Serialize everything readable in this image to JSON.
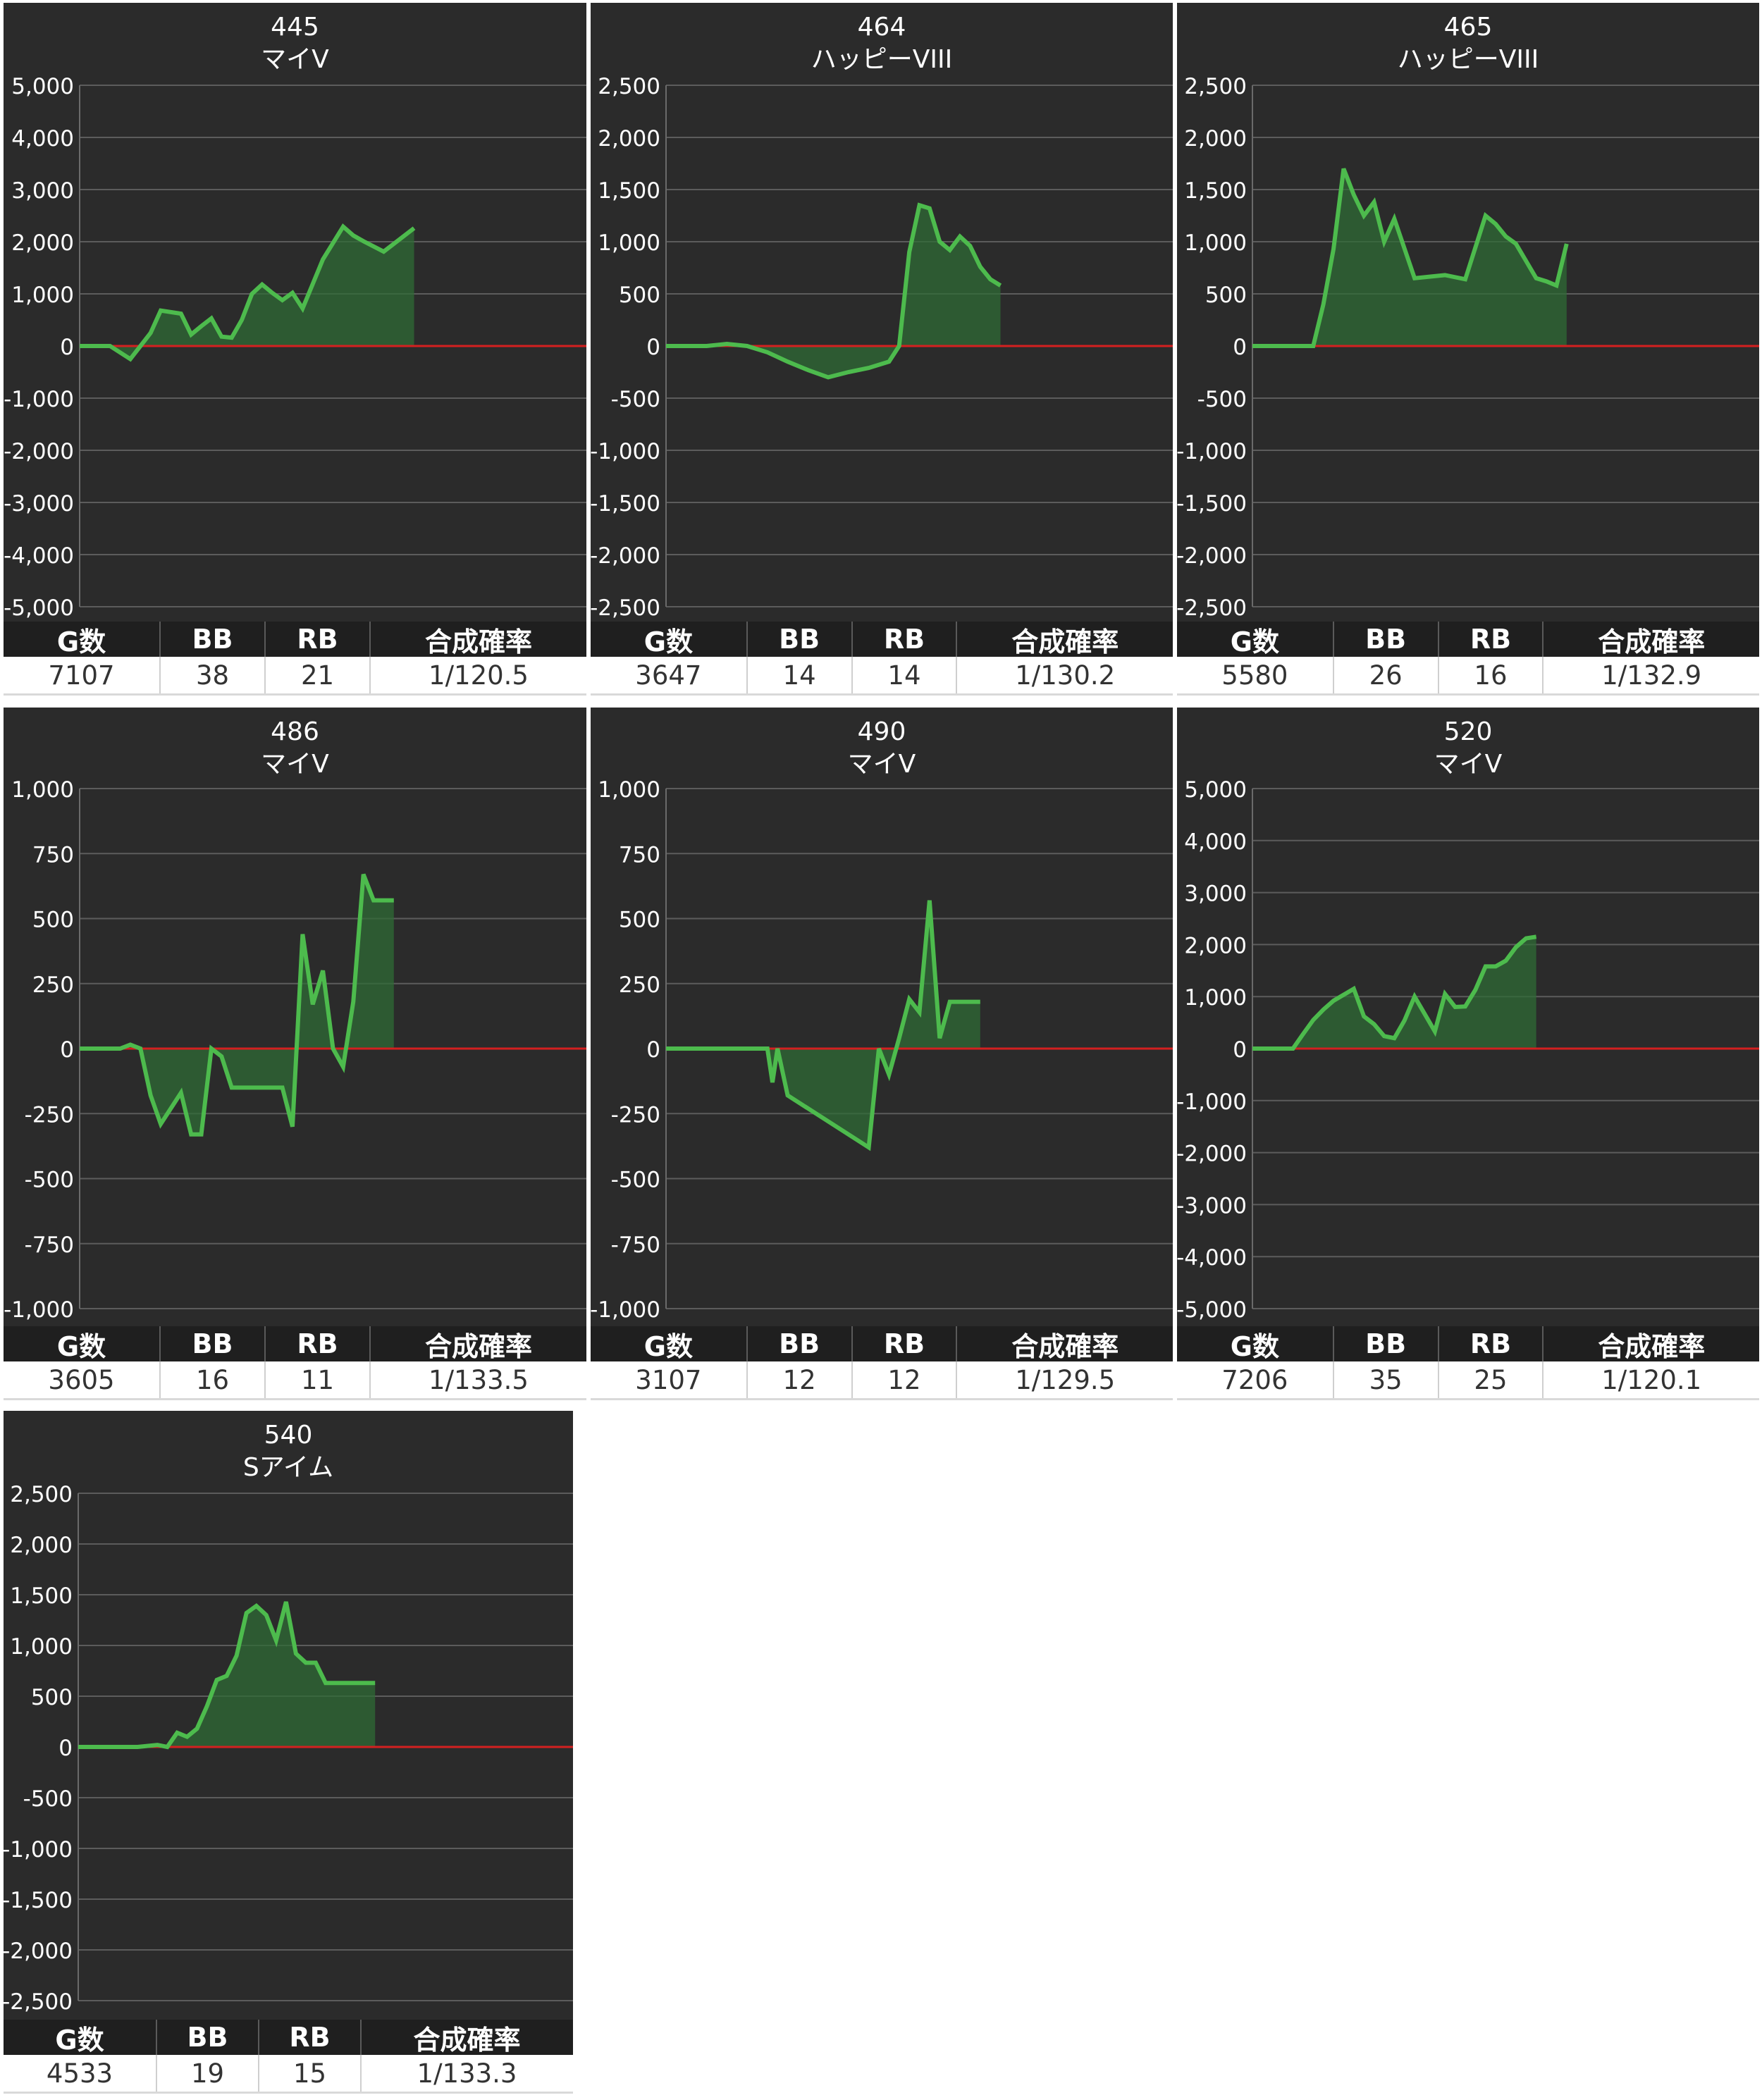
{
  "colors": {
    "background": "#2b2b2b",
    "gridline": "#5c5c5c",
    "zero_line": "#d42020",
    "series_line": "#4dbb4d",
    "series_fill": "#2f6b35",
    "text": "#ffffff",
    "table_header_bg": "#1f1f1f"
  },
  "table_headers": [
    "G数",
    "BB",
    "RB",
    "合成確率"
  ],
  "chart_data": [
    {
      "type": "area",
      "title": "445",
      "subtitle": "マイV",
      "ylim": [
        -5000,
        5000
      ],
      "yticks": [
        5000,
        4000,
        3000,
        2000,
        1000,
        0,
        -1000,
        -2000,
        -3000,
        -4000,
        -5000
      ],
      "ytick_labels": [
        "5,000",
        "4,000",
        "3,000",
        "2,000",
        "1,000",
        "0",
        "-1,000",
        "-2,000",
        "-3,000",
        "-4,000",
        "-5,000"
      ],
      "grid": true,
      "x": [
        0,
        3,
        5,
        6,
        7,
        8,
        10,
        11,
        12,
        13,
        14,
        15,
        16,
        17,
        18,
        19,
        20,
        21,
        22,
        24,
        26,
        27,
        28,
        30,
        33
      ],
      "values": [
        0,
        0,
        -250,
        0,
        250,
        680,
        620,
        220,
        380,
        530,
        180,
        160,
        500,
        1000,
        1180,
        1020,
        880,
        1020,
        720,
        1660,
        2290,
        2120,
        2010,
        1810,
        2260
      ],
      "stats": {
        "games": "7107",
        "bb": "38",
        "rb": "21",
        "rate": "1/120.5"
      }
    },
    {
      "type": "area",
      "title": "464",
      "subtitle": "ハッピーVIII",
      "ylim": [
        -2500,
        2500
      ],
      "yticks": [
        2500,
        2000,
        1500,
        1000,
        500,
        0,
        -500,
        -1000,
        -1500,
        -2000,
        -2500
      ],
      "ytick_labels": [
        "2,500",
        "2,000",
        "1,500",
        "1,000",
        "500",
        "0",
        "-500",
        "-1,000",
        "-1,500",
        "-2,000",
        "-2,500"
      ],
      "grid": true,
      "x": [
        0,
        4,
        6,
        8,
        10,
        12,
        14,
        16,
        18,
        20,
        22,
        23,
        24,
        25,
        26,
        27,
        28,
        29,
        30,
        31,
        32,
        33
      ],
      "values": [
        0,
        0,
        20,
        0,
        -60,
        -150,
        -230,
        -300,
        -250,
        -210,
        -150,
        0,
        900,
        1350,
        1320,
        1000,
        920,
        1050,
        960,
        760,
        640,
        580
      ],
      "stats": {
        "games": "3647",
        "bb": "14",
        "rb": "14",
        "rate": "1/130.2"
      }
    },
    {
      "type": "area",
      "title": "465",
      "subtitle": "ハッピーVIII",
      "ylim": [
        -2500,
        2500
      ],
      "yticks": [
        2500,
        2000,
        1500,
        1000,
        500,
        0,
        -500,
        -1000,
        -1500,
        -2000,
        -2500
      ],
      "ytick_labels": [
        "2,500",
        "2,000",
        "1,500",
        "1,000",
        "500",
        "0",
        "-500",
        "-1,000",
        "-1,500",
        "-2,000",
        "-2,500"
      ],
      "grid": true,
      "x": [
        0,
        6,
        7,
        8,
        9,
        10,
        11,
        12,
        13,
        14,
        16,
        19,
        21,
        23,
        24,
        25,
        26,
        28,
        29,
        30,
        31
      ],
      "values": [
        0,
        0,
        400,
        930,
        1700,
        1450,
        1250,
        1380,
        1000,
        1220,
        650,
        680,
        640,
        1250,
        1170,
        1050,
        980,
        650,
        620,
        580,
        980
      ],
      "stats": {
        "games": "5580",
        "bb": "26",
        "rb": "16",
        "rate": "1/132.9"
      }
    },
    {
      "type": "area",
      "title": "486",
      "subtitle": "マイV",
      "ylim": [
        -1000,
        1000
      ],
      "yticks": [
        1000,
        750,
        500,
        250,
        0,
        -250,
        -500,
        -750,
        -1000
      ],
      "ytick_labels": [
        "1,000",
        "750",
        "500",
        "250",
        "0",
        "-250",
        "-500",
        "-750",
        "-1,000"
      ],
      "grid": true,
      "x": [
        0,
        4,
        5,
        6,
        7,
        8,
        10,
        11,
        12,
        13,
        14,
        15,
        20,
        21,
        22,
        23,
        24,
        25,
        26,
        27,
        28,
        29,
        31
      ],
      "values": [
        0,
        0,
        15,
        0,
        -180,
        -290,
        -170,
        -330,
        -330,
        0,
        -30,
        -150,
        -150,
        -300,
        440,
        170,
        300,
        0,
        -70,
        180,
        670,
        570,
        570
      ],
      "stats": {
        "games": "3605",
        "bb": "16",
        "rb": "11",
        "rate": "1/133.5"
      }
    },
    {
      "type": "area",
      "title": "490",
      "subtitle": "マイV",
      "ylim": [
        -1000,
        1000
      ],
      "yticks": [
        1000,
        750,
        500,
        250,
        0,
        -250,
        -500,
        -750,
        -1000
      ],
      "ytick_labels": [
        "1,000",
        "750",
        "500",
        "250",
        "0",
        "-250",
        "-500",
        "-750",
        "-1,000"
      ],
      "grid": true,
      "x": [
        0,
        10,
        10.5,
        11,
        12,
        20,
        21,
        22,
        23,
        24,
        25,
        26,
        27,
        28,
        29,
        30,
        31
      ],
      "values": [
        0,
        0,
        -130,
        0,
        -180,
        -380,
        0,
        -100,
        40,
        190,
        140,
        570,
        40,
        180,
        180,
        180,
        180
      ],
      "stats": {
        "games": "3107",
        "bb": "12",
        "rb": "12",
        "rate": "1/129.5"
      }
    },
    {
      "type": "area",
      "title": "520",
      "subtitle": "マイV",
      "ylim": [
        -5000,
        5000
      ],
      "yticks": [
        5000,
        4000,
        3000,
        2000,
        1000,
        0,
        -1000,
        -2000,
        -3000,
        -4000,
        -5000
      ],
      "ytick_labels": [
        "5,000",
        "4,000",
        "3,000",
        "2,000",
        "1,000",
        "0",
        "-1,000",
        "-2,000",
        "-3,000",
        "-4,000",
        "-5,000"
      ],
      "grid": true,
      "x": [
        0,
        4,
        5,
        6,
        7,
        8,
        10,
        11,
        12,
        13,
        14,
        15,
        16,
        18,
        19,
        20,
        21,
        22,
        23,
        24,
        25,
        26,
        27,
        28
      ],
      "values": [
        0,
        0,
        280,
        550,
        750,
        920,
        1150,
        620,
        470,
        240,
        200,
        540,
        1000,
        330,
        1050,
        800,
        810,
        1130,
        1580,
        1580,
        1690,
        1950,
        2120,
        2150
      ],
      "stats": {
        "games": "7206",
        "bb": "35",
        "rb": "25",
        "rate": "1/120.1"
      }
    },
    {
      "type": "area",
      "title": "540",
      "subtitle": "Sアイム",
      "ylim": [
        -2500,
        2500
      ],
      "yticks": [
        2500,
        2000,
        1500,
        1000,
        500,
        0,
        -500,
        -1000,
        -1500,
        -2000,
        -2500
      ],
      "ytick_labels": [
        "2,500",
        "2,000",
        "1,500",
        "1,000",
        "500",
        "0",
        "-500",
        "-1,000",
        "-1,500",
        "-2,000",
        "-2,500"
      ],
      "grid": true,
      "x": [
        0,
        6,
        8,
        9,
        10,
        11,
        12,
        13,
        14,
        15,
        16,
        17,
        18,
        19,
        20,
        21,
        22,
        23,
        24,
        25,
        26,
        30
      ],
      "values": [
        0,
        0,
        20,
        0,
        140,
        100,
        180,
        400,
        660,
        700,
        900,
        1320,
        1390,
        1300,
        1050,
        1430,
        920,
        830,
        830,
        630,
        630,
        630
      ],
      "stats": {
        "games": "4533",
        "bb": "19",
        "rb": "15",
        "rate": "1/133.3"
      }
    }
  ]
}
